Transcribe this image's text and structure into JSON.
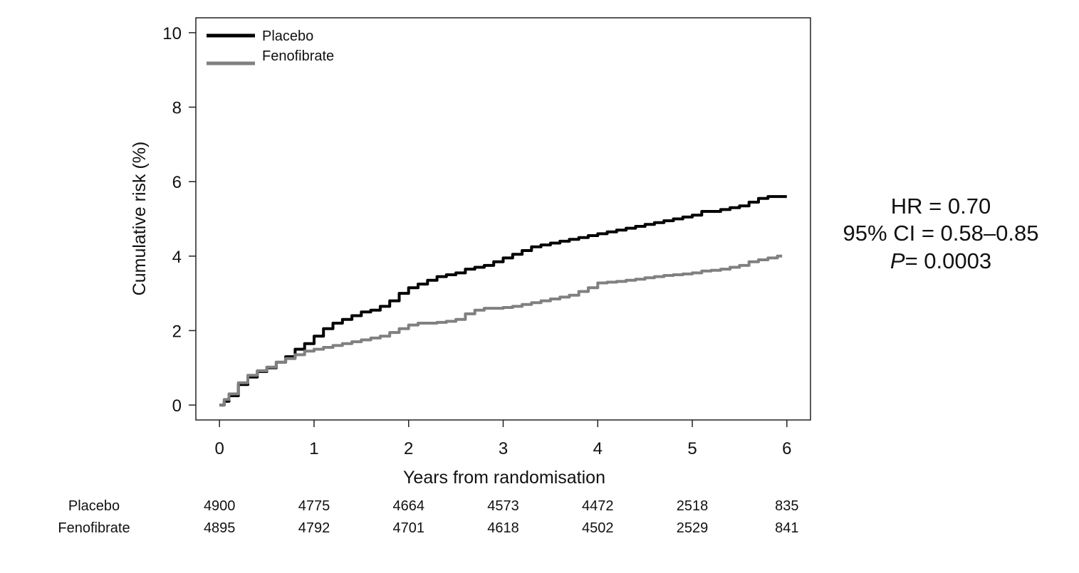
{
  "chart_data": {
    "type": "line",
    "xlabel": "Years from randomisation",
    "ylabel": "Cumulative risk (%)",
    "xlim": [
      -0.25,
      6.25
    ],
    "ylim": [
      -0.4,
      10.4
    ],
    "x_ticks": [
      0,
      1,
      2,
      3,
      4,
      5,
      6
    ],
    "y_ticks": [
      0,
      2,
      4,
      6,
      8,
      10
    ],
    "grid": false,
    "legend_position": "top-left",
    "series": [
      {
        "name": "Placebo",
        "color": "#000000",
        "x": [
          0,
          0.05,
          0.1,
          0.2,
          0.3,
          0.4,
          0.5,
          0.6,
          0.7,
          0.8,
          0.9,
          1.0,
          1.1,
          1.2,
          1.3,
          1.4,
          1.5,
          1.6,
          1.7,
          1.8,
          1.9,
          2.0,
          2.1,
          2.2,
          2.3,
          2.4,
          2.5,
          2.6,
          2.7,
          2.8,
          2.9,
          3.0,
          3.1,
          3.2,
          3.3,
          3.4,
          3.5,
          3.6,
          3.7,
          3.8,
          3.9,
          4.0,
          4.1,
          4.2,
          4.3,
          4.4,
          4.5,
          4.6,
          4.7,
          4.8,
          4.9,
          5.0,
          5.1,
          5.2,
          5.3,
          5.4,
          5.5,
          5.6,
          5.7,
          5.8,
          5.9,
          6.0
        ],
        "y": [
          0,
          0.1,
          0.25,
          0.55,
          0.75,
          0.9,
          1.0,
          1.15,
          1.3,
          1.5,
          1.65,
          1.85,
          2.05,
          2.2,
          2.3,
          2.4,
          2.5,
          2.55,
          2.65,
          2.8,
          3.0,
          3.15,
          3.25,
          3.35,
          3.45,
          3.5,
          3.55,
          3.65,
          3.7,
          3.75,
          3.85,
          3.95,
          4.05,
          4.15,
          4.25,
          4.3,
          4.35,
          4.4,
          4.45,
          4.5,
          4.55,
          4.6,
          4.65,
          4.7,
          4.75,
          4.8,
          4.85,
          4.9,
          4.95,
          5.0,
          5.05,
          5.1,
          5.2,
          5.2,
          5.25,
          5.3,
          5.35,
          5.45,
          5.55,
          5.6,
          5.6,
          5.6
        ]
      },
      {
        "name": "Fenofibrate",
        "color": "#808080",
        "x": [
          0,
          0.05,
          0.1,
          0.2,
          0.3,
          0.4,
          0.5,
          0.6,
          0.7,
          0.8,
          0.9,
          1.0,
          1.1,
          1.2,
          1.3,
          1.4,
          1.5,
          1.6,
          1.7,
          1.8,
          1.9,
          2.0,
          2.1,
          2.2,
          2.3,
          2.4,
          2.5,
          2.6,
          2.7,
          2.8,
          2.9,
          3.0,
          3.1,
          3.2,
          3.3,
          3.4,
          3.5,
          3.6,
          3.7,
          3.8,
          3.9,
          4.0,
          4.1,
          4.2,
          4.3,
          4.4,
          4.5,
          4.6,
          4.7,
          4.8,
          4.9,
          5.0,
          5.1,
          5.2,
          5.3,
          5.4,
          5.5,
          5.6,
          5.7,
          5.8,
          5.9,
          5.95
        ],
        "y": [
          0,
          0.15,
          0.3,
          0.6,
          0.8,
          0.92,
          1.02,
          1.15,
          1.25,
          1.35,
          1.45,
          1.5,
          1.55,
          1.6,
          1.65,
          1.7,
          1.75,
          1.8,
          1.85,
          1.95,
          2.05,
          2.15,
          2.2,
          2.2,
          2.22,
          2.25,
          2.3,
          2.45,
          2.55,
          2.6,
          2.6,
          2.62,
          2.65,
          2.7,
          2.75,
          2.8,
          2.85,
          2.9,
          2.95,
          3.05,
          3.15,
          3.28,
          3.3,
          3.32,
          3.35,
          3.38,
          3.42,
          3.45,
          3.48,
          3.5,
          3.52,
          3.55,
          3.6,
          3.62,
          3.65,
          3.7,
          3.75,
          3.85,
          3.9,
          3.95,
          4.0,
          4.0
        ]
      }
    ],
    "annotations": {
      "hr_line": "HR = 0.70",
      "ci_line": "95% CI = 0.58–0.85",
      "p_symbol": "P",
      "p_value": "= 0.0003"
    },
    "risk_table": {
      "rows": [
        {
          "label": "Placebo",
          "values": [
            "4900",
            "4775",
            "4664",
            "4573",
            "4472",
            "2518",
            "835"
          ]
        },
        {
          "label": "Fenofibrate",
          "values": [
            "4895",
            "4792",
            "4701",
            "4618",
            "4502",
            "2529",
            "841"
          ]
        }
      ]
    }
  }
}
